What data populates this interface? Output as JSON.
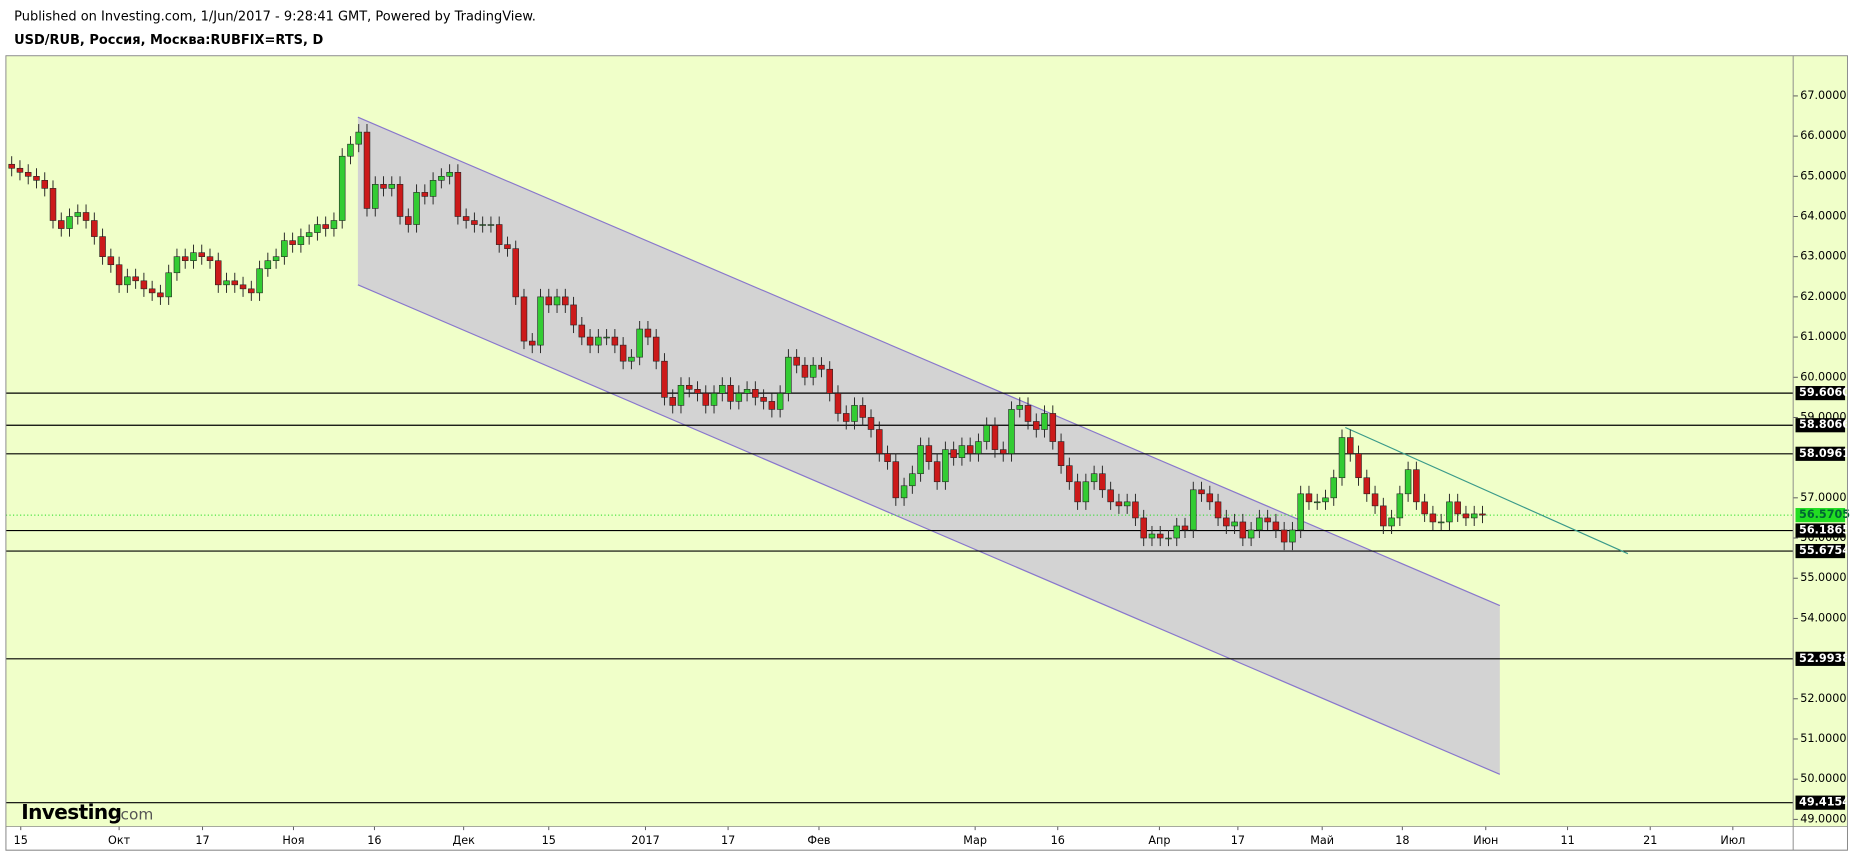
{
  "header": {
    "published": "Published on Investing.com, 1/Jun/2017 - 9:28:41 GMT, Powered by TradingView.",
    "symbol": "USD/RUB, Россия, Москва:RUBFIX=RTS, D"
  },
  "logo": {
    "brand": "Investing",
    "suffix": ".com"
  },
  "chart_data": {
    "type": "candlestick",
    "background": "#f0ffc9",
    "up_color": "#33cc33",
    "down_color": "#cc1a1a",
    "open": [
      65.3,
      65.2,
      65.1,
      65.0,
      64.9,
      64.7,
      63.9,
      63.7,
      64.0,
      64.1,
      63.9,
      63.5,
      63.0,
      62.8,
      62.3,
      62.5,
      62.4,
      62.2,
      62.1,
      62.0,
      62.6,
      63.0,
      62.9,
      63.1,
      63.0,
      62.9,
      62.3,
      62.4,
      62.3,
      62.2,
      62.1,
      62.7,
      62.9,
      63.0,
      63.4,
      63.3,
      63.5,
      63.6,
      63.8,
      63.7,
      63.9,
      65.5,
      65.8,
      66.1,
      64.2,
      64.8,
      64.7,
      64.8,
      64.0,
      63.8,
      64.6,
      64.5,
      64.9,
      65.0,
      65.1,
      64.0,
      63.9,
      63.8,
      63.8,
      63.8,
      63.3,
      63.2,
      62.0,
      60.9,
      60.8,
      62.0,
      61.8,
      62.0,
      61.8,
      61.3,
      61.0,
      60.8,
      61.0,
      61.0,
      60.8,
      60.4,
      60.5,
      61.2,
      61.0,
      60.4,
      59.5,
      59.3,
      59.8,
      59.7,
      59.6,
      59.3,
      59.6,
      59.8,
      59.4,
      59.6,
      59.7,
      59.5,
      59.4,
      59.2,
      59.6,
      60.5,
      60.3,
      60.0,
      60.3,
      60.2,
      59.6,
      59.1,
      58.9,
      59.3,
      59.0,
      58.7,
      58.1,
      57.9,
      57.0,
      57.3,
      57.6,
      58.3,
      57.9,
      57.4,
      58.2,
      58.0,
      58.3,
      58.1,
      58.4,
      58.8,
      58.2,
      58.1,
      59.2,
      59.3,
      58.9,
      58.7,
      59.1,
      58.4,
      57.8,
      57.4,
      56.9,
      57.4,
      57.6,
      57.2,
      56.9,
      56.8,
      56.9,
      56.5,
      56.0,
      56.1,
      56.0,
      56.0,
      56.3,
      56.2,
      57.2,
      57.1,
      56.9,
      56.5,
      56.3,
      56.4,
      56.0,
      56.2,
      56.5,
      56.4,
      56.2,
      55.9,
      56.2,
      57.1,
      56.9,
      56.9,
      57.0,
      57.5,
      58.5,
      58.1,
      57.5,
      57.1,
      56.8,
      56.3,
      56.5,
      57.1,
      57.7,
      56.9,
      56.6,
      56.4,
      56.4,
      56.9,
      56.6,
      56.5,
      56.6
    ],
    "high": [
      65.5,
      65.4,
      65.3,
      65.2,
      65.1,
      64.9,
      64.1,
      64.2,
      64.3,
      64.3,
      64.1,
      63.7,
      63.2,
      63.0,
      62.7,
      62.7,
      62.6,
      62.4,
      62.3,
      62.8,
      63.2,
      63.2,
      63.3,
      63.3,
      63.2,
      63.1,
      62.6,
      62.6,
      62.5,
      62.4,
      62.9,
      63.1,
      63.2,
      63.6,
      63.6,
      63.7,
      63.8,
      64.0,
      64.0,
      64.1,
      65.7,
      66.0,
      66.3,
      66.3,
      65.0,
      65.0,
      65.0,
      65.0,
      64.2,
      64.8,
      64.8,
      65.1,
      65.2,
      65.3,
      65.3,
      64.2,
      64.1,
      64.0,
      64.0,
      64.0,
      63.5,
      63.4,
      62.2,
      61.1,
      62.2,
      62.2,
      62.2,
      62.2,
      62.0,
      61.5,
      61.2,
      61.2,
      61.2,
      61.2,
      61.0,
      60.7,
      61.4,
      61.4,
      61.2,
      60.6,
      59.7,
      60.0,
      60.0,
      59.9,
      59.8,
      59.8,
      60.0,
      60.0,
      59.8,
      59.9,
      59.9,
      59.7,
      59.6,
      59.8,
      60.7,
      60.7,
      60.5,
      60.5,
      60.5,
      60.4,
      59.8,
      59.3,
      59.5,
      59.5,
      59.2,
      58.9,
      58.3,
      58.1,
      57.5,
      57.8,
      58.5,
      58.5,
      58.1,
      58.4,
      58.4,
      58.5,
      58.5,
      58.6,
      59.0,
      59.0,
      58.4,
      59.4,
      59.5,
      59.5,
      59.1,
      59.3,
      59.3,
      58.6,
      58.0,
      57.6,
      57.6,
      57.8,
      57.8,
      57.4,
      57.1,
      57.1,
      57.1,
      56.7,
      56.3,
      56.3,
      56.2,
      56.5,
      56.5,
      57.4,
      57.4,
      57.3,
      57.1,
      56.7,
      56.6,
      56.6,
      56.4,
      56.7,
      56.7,
      56.6,
      56.4,
      56.4,
      57.3,
      57.3,
      57.1,
      57.2,
      57.7,
      58.7,
      58.7,
      58.3,
      57.7,
      57.3,
      57.0,
      56.7,
      57.3,
      57.9,
      57.9,
      57.1,
      56.8,
      56.6,
      57.1,
      57.1,
      56.8,
      56.8,
      56.8
    ],
    "low": [
      65.0,
      64.9,
      64.8,
      64.7,
      64.5,
      63.7,
      63.5,
      63.5,
      63.8,
      63.7,
      63.3,
      62.8,
      62.6,
      62.1,
      62.1,
      62.2,
      62.0,
      61.9,
      61.8,
      61.8,
      62.4,
      62.7,
      62.7,
      62.8,
      62.7,
      62.1,
      62.1,
      62.1,
      62.0,
      61.9,
      61.9,
      62.5,
      62.7,
      62.8,
      63.1,
      63.1,
      63.3,
      63.4,
      63.5,
      63.5,
      63.7,
      65.3,
      65.6,
      64.0,
      64.0,
      64.5,
      64.5,
      63.8,
      63.6,
      63.6,
      64.3,
      64.3,
      64.7,
      64.8,
      63.8,
      63.7,
      63.6,
      63.6,
      63.6,
      63.1,
      63.0,
      61.8,
      60.7,
      60.6,
      60.6,
      61.6,
      61.6,
      61.6,
      61.1,
      60.8,
      60.6,
      60.6,
      60.8,
      60.6,
      60.2,
      60.2,
      60.3,
      60.8,
      60.2,
      59.3,
      59.1,
      59.1,
      59.5,
      59.4,
      59.1,
      59.1,
      59.4,
      59.2,
      59.2,
      59.4,
      59.3,
      59.2,
      59.0,
      59.0,
      59.4,
      60.1,
      59.8,
      59.8,
      60.0,
      59.4,
      58.9,
      58.7,
      58.7,
      58.8,
      58.5,
      57.9,
      57.7,
      56.8,
      56.8,
      57.1,
      57.4,
      57.7,
      57.2,
      57.2,
      57.8,
      57.8,
      57.9,
      57.9,
      58.2,
      58.0,
      57.9,
      57.9,
      59.0,
      58.7,
      58.5,
      58.5,
      58.2,
      57.6,
      57.2,
      56.7,
      56.7,
      57.2,
      57.0,
      56.7,
      56.6,
      56.6,
      56.3,
      55.8,
      55.8,
      55.8,
      55.8,
      55.8,
      56.0,
      56.0,
      56.9,
      56.7,
      56.3,
      56.1,
      56.1,
      55.8,
      55.8,
      56.0,
      56.2,
      56.0,
      55.7,
      55.7,
      56.0,
      56.7,
      56.7,
      56.7,
      56.8,
      57.3,
      57.9,
      57.3,
      56.9,
      56.6,
      56.1,
      56.1,
      56.3,
      56.9,
      56.7,
      56.4,
      56.2,
      56.2,
      56.2,
      56.4,
      56.3,
      56.3,
      56.37
    ],
    "close": [
      65.2,
      65.1,
      65.0,
      64.9,
      64.7,
      63.9,
      63.7,
      64.0,
      64.1,
      63.9,
      63.5,
      63.0,
      62.8,
      62.3,
      62.5,
      62.4,
      62.2,
      62.1,
      62.0,
      62.6,
      63.0,
      62.9,
      63.1,
      63.0,
      62.9,
      62.3,
      62.4,
      62.3,
      62.2,
      62.1,
      62.7,
      62.9,
      63.0,
      63.4,
      63.3,
      63.5,
      63.6,
      63.8,
      63.7,
      63.9,
      65.5,
      65.8,
      66.1,
      64.2,
      64.8,
      64.7,
      64.8,
      64.0,
      63.8,
      64.6,
      64.5,
      64.9,
      65.0,
      65.1,
      64.0,
      63.9,
      63.8,
      63.8,
      63.8,
      63.3,
      63.2,
      62.0,
      60.9,
      60.8,
      62.0,
      61.8,
      62.0,
      61.8,
      61.3,
      61.0,
      60.8,
      61.0,
      61.0,
      60.8,
      60.4,
      60.5,
      61.2,
      61.0,
      60.4,
      59.5,
      59.3,
      59.8,
      59.7,
      59.6,
      59.3,
      59.6,
      59.8,
      59.4,
      59.6,
      59.7,
      59.5,
      59.4,
      59.2,
      59.6,
      60.5,
      60.3,
      60.0,
      60.3,
      60.2,
      59.6,
      59.1,
      58.9,
      59.3,
      59.0,
      58.7,
      58.1,
      57.9,
      57.0,
      57.3,
      57.6,
      58.3,
      57.9,
      57.4,
      58.2,
      58.0,
      58.3,
      58.1,
      58.4,
      58.8,
      58.2,
      58.1,
      59.2,
      59.3,
      58.9,
      58.7,
      59.1,
      58.4,
      57.8,
      57.4,
      56.9,
      57.4,
      57.6,
      57.2,
      56.9,
      56.8,
      56.9,
      56.5,
      56.0,
      56.1,
      56.0,
      56.0,
      56.3,
      56.2,
      57.2,
      57.1,
      56.9,
      56.5,
      56.3,
      56.4,
      56.0,
      56.2,
      56.5,
      56.4,
      56.2,
      55.9,
      56.2,
      57.1,
      56.9,
      56.9,
      57.0,
      57.5,
      58.5,
      58.1,
      57.5,
      57.1,
      56.8,
      56.3,
      56.5,
      57.1,
      57.7,
      56.9,
      56.6,
      56.4,
      56.4,
      56.9,
      56.6,
      56.5,
      56.6,
      56.57
    ],
    "xlim": [
      -0.7,
      215.6
    ],
    "xticks": [
      {
        "value": 1.1,
        "label": "15"
      },
      {
        "value": 13,
        "label": "Окт"
      },
      {
        "value": 23.1,
        "label": "17"
      },
      {
        "value": 34.1,
        "label": "Ноя"
      },
      {
        "value": 43.9,
        "label": "16"
      },
      {
        "value": 54.7,
        "label": "Дек"
      },
      {
        "value": 65,
        "label": "15"
      },
      {
        "value": 76.7,
        "label": "2017"
      },
      {
        "value": 86.7,
        "label": "17"
      },
      {
        "value": 97.7,
        "label": "Фев"
      },
      {
        "value": 116.6,
        "label": "Мар"
      },
      {
        "value": 126.6,
        "label": "16"
      },
      {
        "value": 138.9,
        "label": "Апр"
      },
      {
        "value": 148.4,
        "label": "17"
      },
      {
        "value": 158.6,
        "label": "Май"
      },
      {
        "value": 168.3,
        "label": "18"
      },
      {
        "value": 178.4,
        "label": "Июн"
      },
      {
        "value": 188.3,
        "label": "11"
      },
      {
        "value": 198.3,
        "label": "21"
      },
      {
        "value": 208.3,
        "label": "Июл"
      }
    ],
    "ylim": [
      48.82,
      68.0
    ],
    "yticks": [
      {
        "value": 49,
        "label": "49.0000"
      },
      {
        "value": 50,
        "label": "50.0000"
      },
      {
        "value": 51,
        "label": "51.0000"
      },
      {
        "value": 52,
        "label": "52.0000"
      },
      {
        "value": 54,
        "label": "54.0000"
      },
      {
        "value": 55,
        "label": "55.0000"
      },
      {
        "value": 56,
        "label": "56.0000"
      },
      {
        "value": 57,
        "label": "57.0000"
      },
      {
        "value": 59,
        "label": "59.0000"
      },
      {
        "value": 60,
        "label": "60.0000"
      },
      {
        "value": 61,
        "label": "61.0000"
      },
      {
        "value": 62,
        "label": "62.0000"
      },
      {
        "value": 63,
        "label": "63.0000"
      },
      {
        "value": 64,
        "label": "64.0000"
      },
      {
        "value": 65,
        "label": "65.0000"
      },
      {
        "value": 66,
        "label": "66.0000"
      },
      {
        "value": 67,
        "label": "67.0000"
      }
    ],
    "levels": [
      {
        "value": 59.606,
        "label": "59.6060"
      },
      {
        "value": 58.8066,
        "label": "58.8066"
      },
      {
        "value": 58.0961,
        "label": "58.0961"
      },
      {
        "value": 56.1865,
        "label": "56.1865"
      },
      {
        "value": 55.6754,
        "label": "55.6754"
      },
      {
        "value": 52.9938,
        "label": "52.9938"
      },
      {
        "value": 49.4154,
        "label": "49.4154"
      }
    ],
    "level_color": "#000000",
    "last_price": {
      "value": 56.5705,
      "label": "56.5705"
    },
    "last_color": "#22dd22",
    "channel": {
      "x": [
        41.9,
        180.1
      ],
      "upper": [
        66.47,
        54.32
      ],
      "lower": [
        62.3,
        50.12
      ],
      "fill": "#d3d3d3",
      "color": "#8877cc"
    },
    "trendline": {
      "x": [
        161.4,
        195.6
      ],
      "y": [
        58.75,
        55.61
      ],
      "color": "#3a9a8a"
    }
  }
}
